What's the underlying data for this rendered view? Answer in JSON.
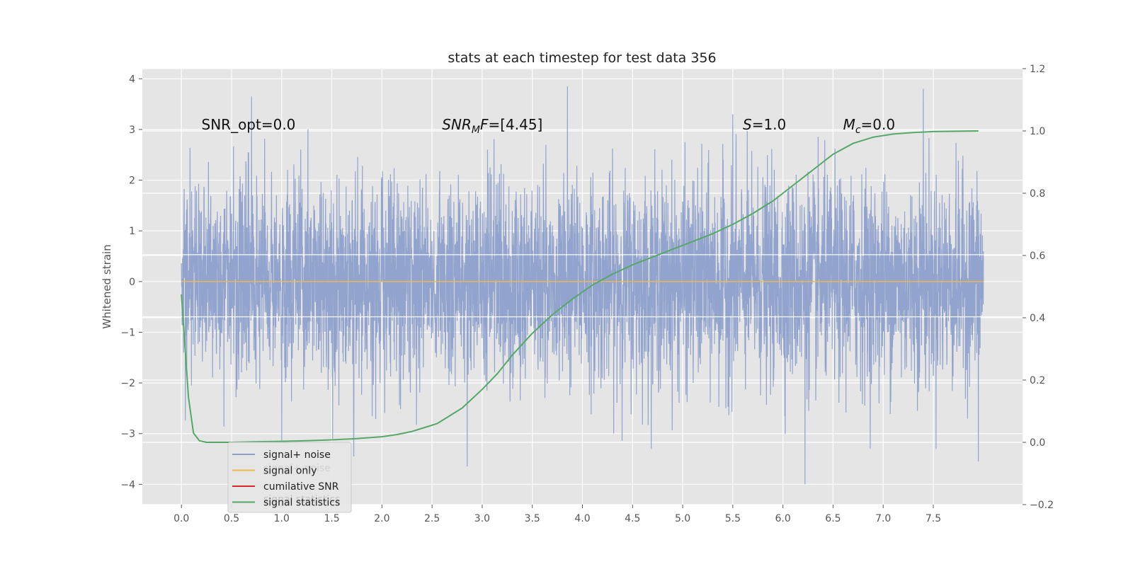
{
  "chart_data": {
    "type": "line",
    "title": "stats at each timestep for test data 356",
    "xlabel": "",
    "ylabel": "Whitened strain",
    "y2label": "",
    "xlim": [
      -0.39,
      8.39
    ],
    "ylim": [
      -4.4,
      4.2
    ],
    "y2lim": [
      -0.2,
      1.2
    ],
    "xticks": [
      "0.0",
      "0.5",
      "1.0",
      "1.5",
      "2.0",
      "2.5",
      "3.0",
      "3.5",
      "4.0",
      "4.5",
      "5.0",
      "5.5",
      "6.0",
      "6.5",
      "7.0",
      "7.5"
    ],
    "xtick_values": [
      0,
      0.5,
      1,
      1.5,
      2,
      2.5,
      3,
      3.5,
      4,
      4.5,
      5,
      5.5,
      6,
      6.5,
      7,
      7.5
    ],
    "yticks": [
      "−4",
      "−3",
      "−2",
      "−1",
      "0",
      "1",
      "2",
      "3",
      "4"
    ],
    "ytick_values": [
      -4,
      -3,
      -2,
      -1,
      0,
      1,
      2,
      3,
      4
    ],
    "y2ticks": [
      "−0.2",
      "0.0",
      "0.2",
      "0.4",
      "0.6",
      "0.8",
      "1.0",
      "1.2"
    ],
    "y2tick_values": [
      -0.2,
      0,
      0.2,
      0.4,
      0.6,
      0.8,
      1.0,
      1.2
    ],
    "grid": true,
    "legend_position": "bottom-left",
    "noise": {
      "x_range": [
        0,
        8
      ],
      "samples": 4096,
      "amplitude_sd": 1.0,
      "note_peaks": [
        [
          0.7,
          3.65
        ],
        [
          3.85,
          3.85
        ],
        [
          5.5,
          3.3
        ],
        [
          7.4,
          3.8
        ],
        [
          6.22,
          -4.0
        ],
        [
          2.85,
          -3.65
        ],
        [
          7.95,
          -3.55
        ],
        [
          1.72,
          -3.45
        ]
      ]
    },
    "series": [
      {
        "name": "signal+ noise",
        "color": "#8da0cb",
        "axis": "left",
        "x_range": [
          0,
          8
        ],
        "description_values": "noise"
      },
      {
        "name": "signal only",
        "color": "#f2b84b",
        "axis": "left",
        "x": [
          0,
          8
        ],
        "y": [
          0,
          0
        ]
      },
      {
        "name": "cumilative SNR",
        "color": "#d62728",
        "axis": "left",
        "x": [],
        "y": []
      },
      {
        "name": "signal statistics",
        "color": "#55a868",
        "axis": "right",
        "x": [
          0,
          0.07,
          0.12,
          0.18,
          0.25,
          0.35,
          0.5,
          0.75,
          1.0,
          1.25,
          1.5,
          1.75,
          2.0,
          2.15,
          2.3,
          2.45,
          2.55,
          2.7,
          2.8,
          2.9,
          3.0,
          3.15,
          3.3,
          3.5,
          3.7,
          3.9,
          4.1,
          4.3,
          4.5,
          4.7,
          4.9,
          5.1,
          5.3,
          5.5,
          5.7,
          5.9,
          6.1,
          6.3,
          6.5,
          6.7,
          6.9,
          7.1,
          7.3,
          7.5,
          7.7,
          7.95
        ],
        "y": [
          0.475,
          0.145,
          0.03,
          0.005,
          0.0,
          0.0,
          0.0,
          0.002,
          0.003,
          0.005,
          0.008,
          0.012,
          0.018,
          0.025,
          0.035,
          0.05,
          0.06,
          0.09,
          0.11,
          0.14,
          0.17,
          0.22,
          0.28,
          0.35,
          0.41,
          0.46,
          0.505,
          0.54,
          0.57,
          0.595,
          0.62,
          0.645,
          0.67,
          0.7,
          0.735,
          0.775,
          0.825,
          0.875,
          0.925,
          0.96,
          0.98,
          0.99,
          0.995,
          0.998,
          0.999,
          1.0
        ]
      }
    ],
    "annotations": [
      {
        "text_parts": [
          {
            "t": "SNR_opt=0.0",
            "italic": false
          }
        ],
        "x": 0.2,
        "y": 3.1
      },
      {
        "text_parts": [
          {
            "t": "SNR",
            "italic": true
          },
          {
            "t": "M",
            "italic": true,
            "sub": true
          },
          {
            "t": "F",
            "italic": true
          },
          {
            "t": "=[4.45]",
            "italic": false
          }
        ],
        "x": 2.6,
        "y": 3.1
      },
      {
        "text_parts": [
          {
            "t": "S",
            "italic": true
          },
          {
            "t": "=1.0",
            "italic": false
          }
        ],
        "x": 5.6,
        "y": 3.1
      },
      {
        "text_parts": [
          {
            "t": "M",
            "italic": true
          },
          {
            "t": "c",
            "italic": true,
            "sub": true
          },
          {
            "t": "=0.0",
            "italic": false
          }
        ],
        "x": 6.6,
        "y": 3.1
      }
    ],
    "legend_ghost_text": [
      "signal+ noise",
      "signal statistics"
    ]
  }
}
